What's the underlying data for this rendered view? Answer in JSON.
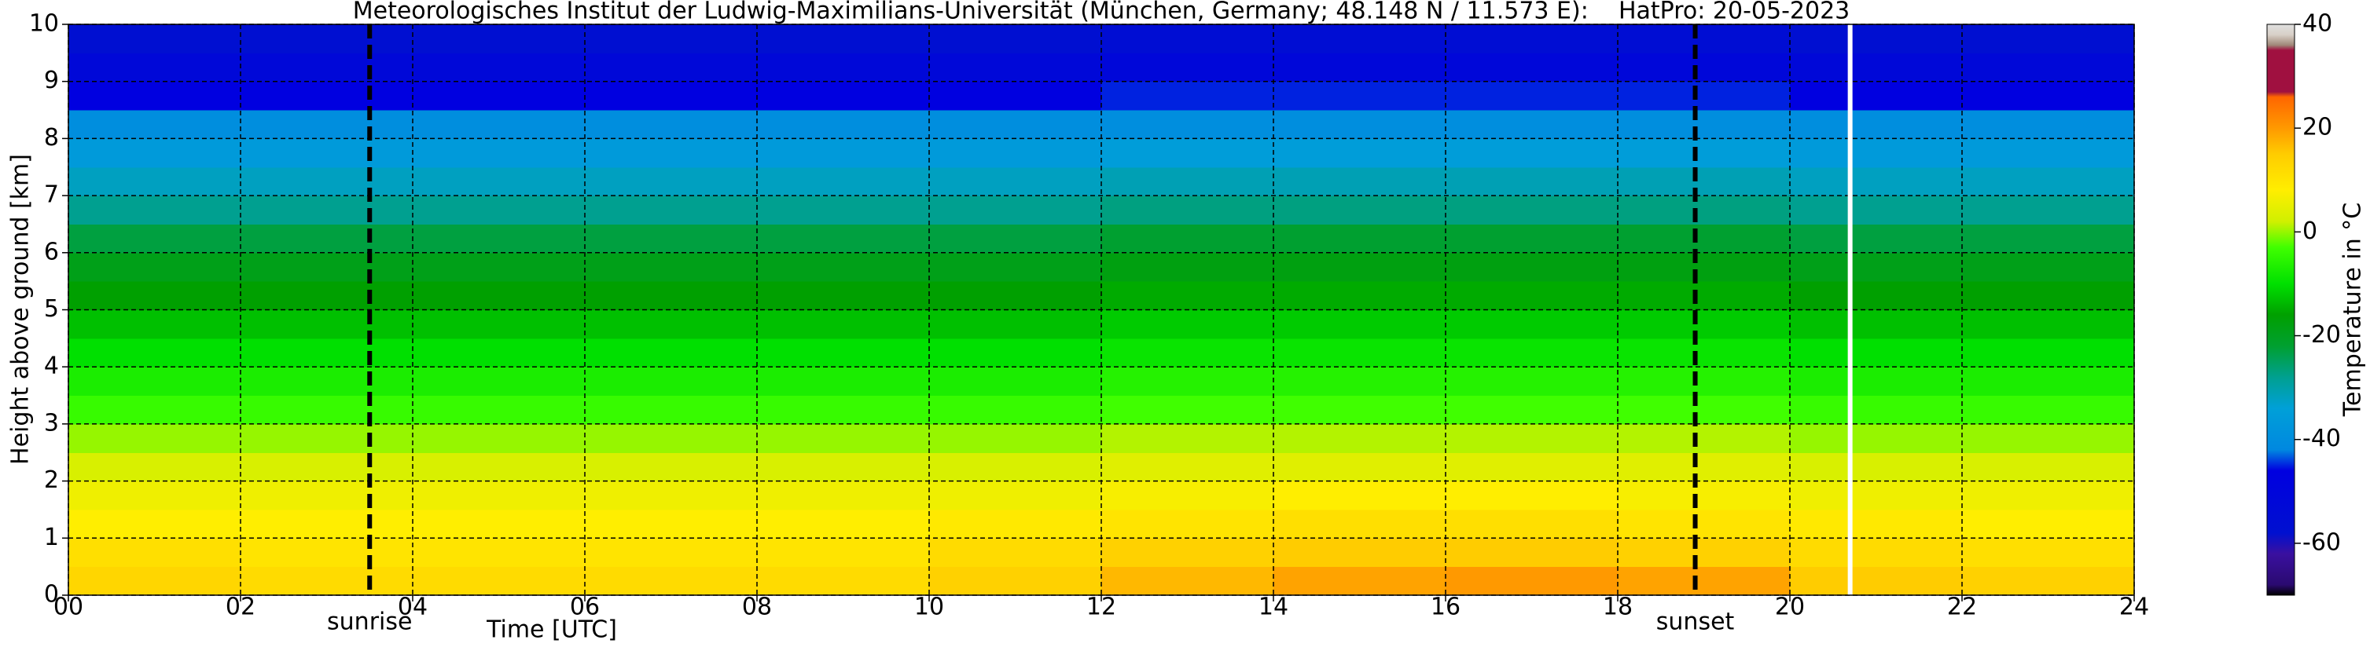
{
  "chart_data": {
    "type": "heatmap",
    "title": "Meteorologisches Institut der Ludwig-Maximilians-Universität (München, Germany; 48.148 N / 11.573 E):    HatPro: 20-05-2023",
    "xlabel": "Time [UTC]",
    "ylabel": "Height above ground [km]",
    "colorbar_label": "Temperature in °C",
    "x": [
      0,
      2,
      4,
      6,
      8,
      10,
      12,
      14,
      16,
      18,
      20,
      22,
      24
    ],
    "y": [
      0,
      0.5,
      1,
      1.5,
      2,
      2.5,
      3,
      3.5,
      4,
      4.5,
      5,
      5.5,
      6,
      6.5,
      7,
      7.5,
      8,
      8.5,
      9,
      9.5,
      10
    ],
    "values": [
      [
        13,
        12,
        12,
        12,
        12,
        14,
        17,
        19,
        20,
        19,
        15,
        14
      ],
      [
        11,
        10,
        10,
        10,
        10,
        12,
        14,
        15,
        15,
        14,
        12,
        11
      ],
      [
        8,
        8,
        8,
        8,
        8,
        9,
        10,
        11,
        11,
        10,
        9,
        8
      ],
      [
        6,
        6,
        6,
        6,
        6,
        6,
        7,
        8,
        8,
        7,
        6,
        6
      ],
      [
        3,
        3,
        3,
        3,
        3,
        3,
        4,
        4,
        4,
        4,
        3,
        3
      ],
      [
        0,
        0,
        0,
        0,
        0,
        0,
        1,
        1,
        1,
        1,
        0,
        0
      ],
      [
        -4,
        -4,
        -4,
        -4,
        -4,
        -4,
        -3,
        -3,
        -3,
        -3,
        -4,
        -4
      ],
      [
        -7,
        -7,
        -7,
        -7,
        -7,
        -7,
        -6,
        -6,
        -6,
        -6,
        -7,
        -7
      ],
      [
        -10,
        -10,
        -10,
        -10,
        -10,
        -10,
        -9,
        -9,
        -9,
        -9,
        -10,
        -10
      ],
      [
        -13,
        -13,
        -13,
        -13,
        -13,
        -13,
        -12,
        -12,
        -12,
        -12,
        -13,
        -13
      ],
      [
        -16,
        -16,
        -16,
        -16,
        -16,
        -16,
        -15,
        -15,
        -15,
        -15,
        -16,
        -16
      ],
      [
        -19,
        -19,
        -19,
        -19,
        -19,
        -19,
        -18,
        -18,
        -18,
        -18,
        -19,
        -19
      ],
      [
        -23,
        -23,
        -23,
        -23,
        -23,
        -23,
        -22,
        -22,
        -22,
        -22,
        -23,
        -23
      ],
      [
        -28,
        -28,
        -28,
        -28,
        -28,
        -28,
        -27,
        -27,
        -27,
        -27,
        -28,
        -28
      ],
      [
        -32,
        -32,
        -32,
        -32,
        -32,
        -32,
        -31,
        -31,
        -31,
        -31,
        -32,
        -32
      ],
      [
        -36,
        -36,
        -36,
        -36,
        -36,
        -36,
        -35,
        -35,
        -35,
        -35,
        -36,
        -36
      ],
      [
        -40,
        -40,
        -40,
        -40,
        -40,
        -40,
        -40,
        -40,
        -40,
        -40,
        -40,
        -40
      ],
      [
        -46,
        -46,
        -46,
        -46,
        -46,
        -46,
        -45,
        -45,
        -45,
        -45,
        -46,
        -46
      ],
      [
        -52,
        -52,
        -52,
        -52,
        -52,
        -52,
        -51,
        -51,
        -51,
        -51,
        -52,
        -52
      ],
      [
        -57,
        -57,
        -57,
        -57,
        -57,
        -57,
        -56,
        -56,
        -56,
        -56,
        -57,
        -57
      ]
    ],
    "xlim": [
      0,
      24
    ],
    "ylim": [
      0,
      10
    ],
    "clim": [
      -70,
      40
    ],
    "xticks": [
      {
        "value": 0,
        "label": "00"
      },
      {
        "value": 2,
        "label": "02"
      },
      {
        "value": 4,
        "label": "04"
      },
      {
        "value": 6,
        "label": "06"
      },
      {
        "value": 8,
        "label": "08"
      },
      {
        "value": 10,
        "label": "10"
      },
      {
        "value": 12,
        "label": "12"
      },
      {
        "value": 14,
        "label": "14"
      },
      {
        "value": 16,
        "label": "16"
      },
      {
        "value": 18,
        "label": "18"
      },
      {
        "value": 20,
        "label": "20"
      },
      {
        "value": 22,
        "label": "22"
      },
      {
        "value": 24,
        "label": "24"
      }
    ],
    "yticks": [
      0,
      1,
      2,
      3,
      4,
      5,
      6,
      7,
      8,
      9,
      10
    ],
    "cticks": [
      -60,
      -40,
      -20,
      0,
      20,
      40
    ],
    "grid": true,
    "colorscale": [
      [
        -70,
        "#000000"
      ],
      [
        -68,
        "#2a0a70"
      ],
      [
        -62,
        "#3a10a0"
      ],
      [
        -58,
        "#0010d0"
      ],
      [
        -46,
        "#0000e0"
      ],
      [
        -42,
        "#0088e0"
      ],
      [
        -34,
        "#00a0d8"
      ],
      [
        -28,
        "#00a090"
      ],
      [
        -22,
        "#00a030"
      ],
      [
        -16,
        "#00a000"
      ],
      [
        -10,
        "#00e000"
      ],
      [
        -3,
        "#40ff00"
      ],
      [
        2,
        "#d0f000"
      ],
      [
        8,
        "#ffee00"
      ],
      [
        15,
        "#ffcc00"
      ],
      [
        20,
        "#ff9900"
      ],
      [
        26,
        "#ff6600"
      ],
      [
        27,
        "#a01040"
      ],
      [
        35,
        "#a01040"
      ],
      [
        36,
        "#a08878"
      ],
      [
        38,
        "#d8d0c8"
      ],
      [
        40,
        "#e0e0e0"
      ]
    ],
    "vlines": [
      {
        "x": 3.5,
        "label": "sunrise",
        "color": "#000000",
        "style": "dashed"
      },
      {
        "x": 18.9,
        "label": "sunset",
        "color": "#000000",
        "style": "dashed"
      },
      {
        "x": 20.7,
        "color": "#ffffff",
        "style": "solid"
      }
    ]
  }
}
